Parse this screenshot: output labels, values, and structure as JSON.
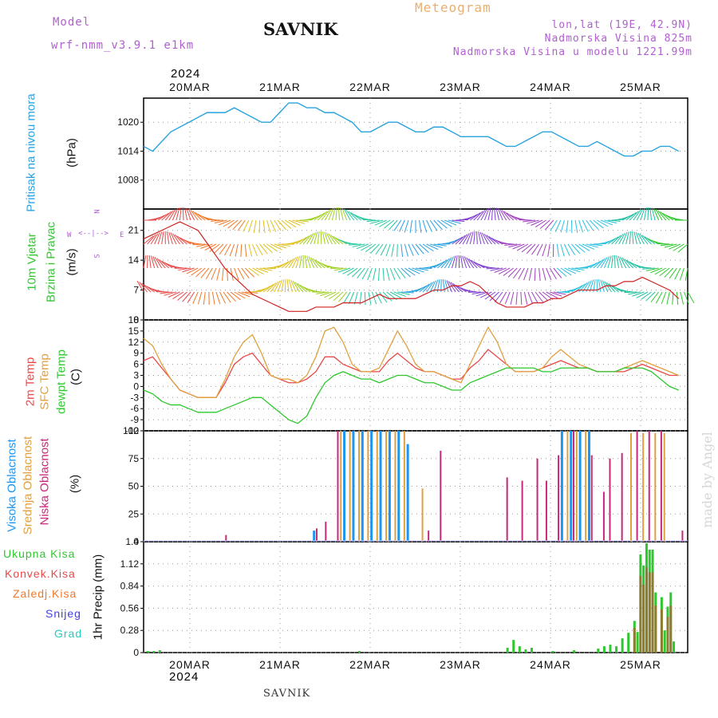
{
  "header": {
    "model_label": "Model",
    "model_name": "wrf-nmm_v3.9.1 e1km",
    "title": "SAVNIK",
    "subtitle": "Meteogram",
    "lonlat": "lon,lat (19E, 42.9N)",
    "altitude": "Nadmorska Visina 825m",
    "model_altitude": "Nadmorska Visina u modelu 1221.99m",
    "year_top": "2024",
    "year_bottom": "2024",
    "footer": "SAVNIK",
    "watermark": "made by Angel"
  },
  "colors": {
    "pressure": "#29a3e0",
    "temp2m": "#e84848",
    "sfc": "#e0a040",
    "dewpt": "#2ec82e",
    "high_cloud": "#1e96f0",
    "mid_cloud": "#e0a040",
    "low_cloud": "#c8287a",
    "total_precip": "#2ec82e",
    "conv_precip": "#e84848",
    "frozen_precip": "#f07828",
    "snow": "#4040e0",
    "hail": "#28c8c0",
    "model_label": "#b060d0"
  },
  "chart_data": [
    {
      "type": "line",
      "panel": "pressure",
      "ylabel": "Pritisak na nivou mora",
      "unit": "(hPa)",
      "x_ticks": [
        "20MAR",
        "21MAR",
        "22MAR",
        "23MAR",
        "24MAR",
        "25MAR"
      ],
      "y_ticks": [
        1008,
        1014,
        1020
      ],
      "ylim": [
        1002,
        1025
      ],
      "x_hours": [
        0,
        3,
        6,
        9,
        12,
        15,
        18,
        21,
        24,
        27,
        30,
        33,
        36,
        39,
        42,
        45,
        48,
        51,
        54,
        57,
        60,
        63,
        66,
        69,
        72,
        75,
        78,
        81,
        84,
        87,
        90,
        93,
        96,
        99,
        102,
        105,
        108,
        111,
        114,
        117,
        120,
        123,
        126,
        129,
        132,
        135,
        138,
        141,
        144,
        147,
        150,
        153,
        156,
        159,
        162,
        165,
        168,
        171,
        174,
        177
      ],
      "series": [
        {
          "values": [
            1015,
            1014,
            1016,
            1018,
            1019,
            1020,
            1021,
            1022,
            1022,
            1022,
            1023,
            1022,
            1021,
            1020,
            1020,
            1022,
            1024,
            1024,
            1023,
            1023,
            1022,
            1022,
            1021,
            1020,
            1018,
            1018,
            1019,
            1020,
            1020,
            1019,
            1018,
            1018,
            1019,
            1019,
            1018,
            1017,
            1017,
            1017,
            1017,
            1016,
            1015,
            1015,
            1016,
            1017,
            1018,
            1018,
            1017,
            1016,
            1015,
            1015,
            1016,
            1015,
            1014,
            1013,
            1013,
            1014,
            1014,
            1015,
            1015,
            1014
          ]
        }
      ]
    },
    {
      "type": "line",
      "panel": "wind",
      "ylabel": "10m Vjetar Brzina i Pravac",
      "unit": "(m/s)",
      "compass": [
        "W",
        "E",
        "N",
        "S"
      ],
      "y_ticks": [
        0,
        7,
        14,
        21
      ],
      "ylim": [
        0,
        26
      ],
      "series": [
        {
          "name": "speed",
          "values": [
            19,
            20,
            21,
            22,
            23,
            22,
            21,
            18,
            15,
            12,
            10,
            8,
            6,
            5,
            4,
            3,
            2,
            2,
            2,
            3,
            3,
            3,
            4,
            4,
            4,
            5,
            6,
            5,
            5,
            5,
            5,
            6,
            7,
            7,
            8,
            8,
            9,
            8,
            6,
            4,
            3,
            3,
            3,
            4,
            4,
            5,
            5,
            6,
            7,
            7,
            7,
            8,
            8,
            9,
            9,
            10,
            9,
            8,
            7,
            5
          ]
        }
      ]
    },
    {
      "type": "line",
      "panel": "temperature",
      "ylabel": "2m Temp SFC Temp dewpt Temp",
      "unit": "(C)",
      "y_ticks": [
        -12,
        -9,
        -6,
        -3,
        0,
        3,
        6,
        9,
        12,
        15,
        18
      ],
      "ylim": [
        -12,
        18
      ],
      "series": [
        {
          "name": "2m Temp",
          "values": [
            7,
            8,
            5,
            2,
            -1,
            -2,
            -3,
            -3,
            -3,
            1,
            6,
            8,
            9,
            6,
            3,
            2,
            1,
            1,
            2,
            4,
            8,
            8,
            6,
            5,
            4,
            4,
            4,
            7,
            9,
            7,
            5,
            4,
            4,
            3,
            2,
            2,
            5,
            7,
            10,
            8,
            6,
            4,
            4,
            4,
            5,
            6,
            7,
            6,
            5,
            5,
            4,
            4,
            4,
            4,
            5,
            6,
            5,
            4,
            3,
            3
          ]
        },
        {
          "name": "SFC Temp",
          "values": [
            13,
            11,
            6,
            2,
            -1,
            -2,
            -3,
            -3,
            -3,
            2,
            8,
            12,
            14,
            9,
            3,
            2,
            2,
            1,
            3,
            8,
            15,
            16,
            12,
            6,
            4,
            4,
            5,
            10,
            15,
            11,
            6,
            4,
            4,
            3,
            2,
            1,
            6,
            11,
            16,
            12,
            6,
            4,
            4,
            4,
            5,
            8,
            10,
            8,
            6,
            5,
            4,
            4,
            4,
            5,
            6,
            7,
            6,
            5,
            4,
            3
          ]
        },
        {
          "name": "dewpt Temp",
          "values": [
            -1,
            -2,
            -4,
            -5,
            -5,
            -6,
            -7,
            -7,
            -7,
            -6,
            -5,
            -4,
            -3,
            -3,
            -5,
            -7,
            -9,
            -10,
            -8,
            -3,
            1,
            3,
            4,
            3,
            2,
            2,
            1,
            2,
            3,
            3,
            2,
            1,
            1,
            0,
            -1,
            -1,
            1,
            2,
            3,
            4,
            5,
            5,
            5,
            5,
            4,
            4,
            5,
            5,
            5,
            5,
            4,
            4,
            4,
            5,
            5,
            5,
            4,
            2,
            0,
            -1
          ]
        }
      ]
    },
    {
      "type": "bar",
      "panel": "clouds",
      "ylabel": "Visoka Oblacnost Srednja Oblacnost Niska Oblacnost",
      "unit": "(%)",
      "y_ticks": [
        0,
        25,
        50,
        75,
        100
      ],
      "ylim": [
        0,
        100
      ],
      "series": [
        {
          "name": "Visoka Oblacnost",
          "bars": [
            [
              56,
              10
            ],
            [
              66,
              100
            ],
            [
              69,
              100
            ],
            [
              72,
              100
            ],
            [
              75,
              100
            ],
            [
              78,
              100
            ],
            [
              81,
              100
            ],
            [
              84,
              100
            ],
            [
              87,
              88
            ],
            [
              138,
              100
            ],
            [
              141,
              100
            ],
            [
              144,
              100
            ],
            [
              147,
              100
            ]
          ]
        },
        {
          "name": "Srednja Oblacnost",
          "bars": [
            [
              65,
              100
            ],
            [
              68,
              100
            ],
            [
              71,
              100
            ],
            [
              74,
              100
            ],
            [
              77,
              100
            ],
            [
              80,
              100
            ],
            [
              83,
              100
            ],
            [
              86,
              100
            ],
            [
              92,
              48
            ],
            [
              140,
              100
            ],
            [
              143,
              100
            ],
            [
              146,
              100
            ],
            [
              161,
              98
            ],
            [
              165,
              98
            ],
            [
              169,
              98
            ],
            [
              172,
              98
            ]
          ]
        },
        {
          "name": "Niska Oblacnost",
          "bars": [
            [
              27,
              6
            ],
            [
              57,
              12
            ],
            [
              60,
              18
            ],
            [
              64,
              100
            ],
            [
              94,
              10
            ],
            [
              98,
              82
            ],
            [
              120,
              58
            ],
            [
              125,
              55
            ],
            [
              130,
              75
            ],
            [
              133,
              55
            ],
            [
              137,
              78
            ],
            [
              142,
              100
            ],
            [
              148,
              78
            ],
            [
              152,
              45
            ],
            [
              154,
              75
            ],
            [
              158,
              80
            ],
            [
              163,
              100
            ],
            [
              167,
              100
            ],
            [
              171,
              100
            ],
            [
              178,
              10
            ]
          ]
        }
      ]
    },
    {
      "type": "bar",
      "panel": "precip",
      "ylabel": "1hr Precip",
      "unit": "(mm)",
      "legend": [
        "Ukupna Kisa",
        "Konvek.Kisa",
        "Zaledj.Kisa",
        "Snijeg",
        "Grad"
      ],
      "y_ticks": [
        0,
        0.28,
        0.56,
        0.84,
        1.12,
        1.4
      ],
      "ylim": [
        0,
        1.4
      ],
      "x_ticks": [
        "20MAR",
        "21MAR",
        "22MAR",
        "23MAR",
        "24MAR",
        "25MAR"
      ],
      "bars": [
        [
          1,
          0.02
        ],
        [
          3,
          0.02
        ],
        [
          5,
          0.03
        ],
        [
          71,
          0.02
        ],
        [
          120,
          0.06
        ],
        [
          122,
          0.16
        ],
        [
          124,
          0.08
        ],
        [
          126,
          0.04
        ],
        [
          128,
          0.06
        ],
        [
          135,
          0.02
        ],
        [
          142,
          0.03
        ],
        [
          150,
          0.05
        ],
        [
          152,
          0.08
        ],
        [
          154,
          0.1
        ],
        [
          156,
          0.08
        ],
        [
          158,
          0.18
        ],
        [
          160,
          0.25
        ],
        [
          162,
          0.4
        ],
        [
          163,
          0.26
        ],
        [
          164,
          1.24
        ],
        [
          165,
          1.1
        ],
        [
          166,
          1.38
        ],
        [
          167,
          1.3
        ],
        [
          168,
          1.3
        ],
        [
          169,
          0.76
        ],
        [
          171,
          0.7
        ],
        [
          172,
          0.28
        ],
        [
          173,
          0.58
        ],
        [
          174,
          0.76
        ],
        [
          175,
          0.14
        ]
      ]
    }
  ]
}
